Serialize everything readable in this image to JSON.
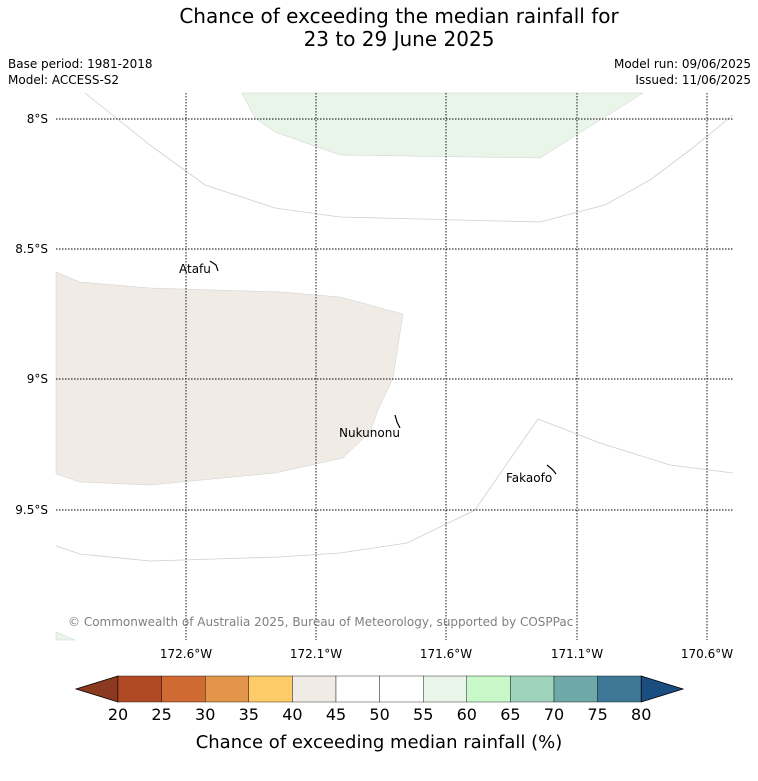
{
  "title": {
    "line1": "Chance of exceeding the median rainfall for",
    "line2": "23 to 29 June 2025"
  },
  "header": {
    "base_period": "Base period: 1981-2018",
    "model": "Model: ACCESS-S2",
    "model_run": "Model run: 09/06/2025",
    "issued": "Issued: 11/06/2025"
  },
  "map": {
    "lat_labels": [
      "8°S",
      "8.5°S",
      "9°S",
      "9.5°S"
    ],
    "lon_labels": [
      "172.6°W",
      "172.1°W",
      "171.6°W",
      "171.1°W",
      "170.6°W"
    ],
    "places": [
      "Atafu",
      "Nukunonu",
      "Fakaofo"
    ],
    "copyright": "© Commonwealth of Australia 2025, Bureau of Meteorology, supported by COSPPac"
  },
  "colorbar": {
    "ticks": [
      "20",
      "25",
      "30",
      "35",
      "40",
      "45",
      "50",
      "55",
      "60",
      "65",
      "70",
      "75",
      "80"
    ],
    "colors": [
      "#8c3a1f",
      "#b04a24",
      "#cf6a33",
      "#e3964a",
      "#fdcc69",
      "#f0ebe5",
      "#ffffff",
      "#ffffff",
      "#e8f5e8",
      "#c8f8c8",
      "#9ed4bc",
      "#6fa8a8",
      "#3f7896",
      "#1a4d80"
    ],
    "label": "Chance of exceeding median rainfall (%)"
  },
  "legend_colors": {
    "light_green": "#e8f5e8",
    "beige": "#f0ebe5"
  }
}
